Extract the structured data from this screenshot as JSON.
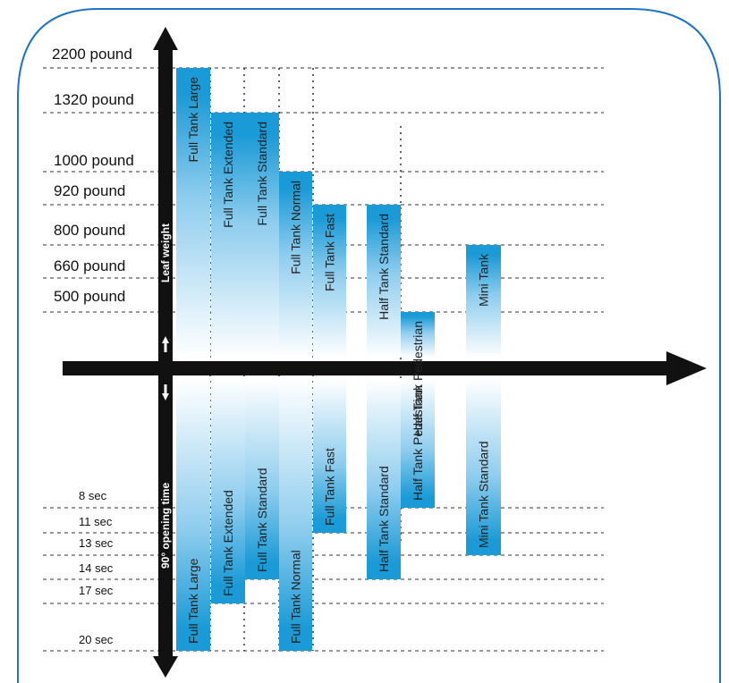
{
  "chart_data": {
    "type": "bar",
    "top_axis": {
      "label": "Leaf weight",
      "unit": "pound",
      "ticks": [
        "2200 pound",
        "1320 pound",
        "1000 pound",
        "920 pound",
        "800 pound",
        "660 pound",
        "500 pound"
      ]
    },
    "bottom_axis": {
      "label": "90° opening time",
      "unit": "sec",
      "ticks": [
        "8 sec",
        "11 sec",
        "13 sec",
        "14 sec",
        "17 sec",
        "20 sec"
      ]
    },
    "series": [
      {
        "name": "Leaf weight",
        "unit": "pound",
        "values": [
          {
            "label": "Full Tank Large",
            "value": 2200
          },
          {
            "label": "Full Tank Extended",
            "value": 1320
          },
          {
            "label": "Full Tank Standard",
            "value": 1320
          },
          {
            "label": "Full Tank Normal",
            "value": 1000
          },
          {
            "label": "Full Tank Fast",
            "value": 920
          },
          {
            "label": "Half Tank Standard",
            "value": 920
          },
          {
            "label": "Half Tank Pedestrian",
            "value": 500
          },
          {
            "label": "Mini Tank",
            "value": 800
          }
        ]
      },
      {
        "name": "90° opening time",
        "unit": "sec",
        "values": [
          {
            "label": "Full Tank Large",
            "value": 20
          },
          {
            "label": "Full Tank Extended",
            "value": 17
          },
          {
            "label": "Full Tank Standard",
            "value": 14
          },
          {
            "label": "Full Tank Normal",
            "value": 20
          },
          {
            "label": "Full Tank Fast",
            "value": 11
          },
          {
            "label": "Half Tank Standard",
            "value": 14
          },
          {
            "label": "Half Tank Pedestrian",
            "value": 8
          },
          {
            "label": "Mini Tank Standard",
            "value": 13
          }
        ]
      }
    ],
    "colors": {
      "bar": "#1a9ad6",
      "bar_light": "#ffffff",
      "frame": "#1e73c8",
      "axis": "#111111"
    }
  }
}
